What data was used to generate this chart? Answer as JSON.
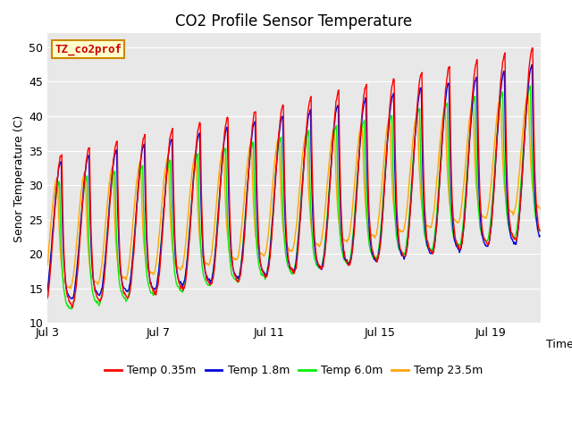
{
  "title": "CO2 Profile Sensor Temperature",
  "xlabel": "Time",
  "ylabel": "Senor Temperature (C)",
  "ylim": [
    10,
    52
  ],
  "yticks": [
    10,
    15,
    20,
    25,
    30,
    35,
    40,
    45,
    50
  ],
  "xtick_positions": [
    0,
    4,
    8,
    12,
    16
  ],
  "xtick_labels": [
    "Jul 3",
    "Jul 7",
    "Jul 11",
    "Jul 15",
    "Jul 19"
  ],
  "xlim": [
    0,
    17.8
  ],
  "colors": {
    "temp035": "#FF0000",
    "temp18": "#0000DD",
    "temp60": "#00EE00",
    "temp235": "#FFA500"
  },
  "legend_labels": [
    "Temp 0.35m",
    "Temp 1.8m",
    "Temp 6.0m",
    "Temp 23.5m"
  ],
  "annotation_text": "TZ_co2prof",
  "annotation_color": "#CC0000",
  "annotation_bg": "#FFFFCC",
  "annotation_border": "#CC8800",
  "plot_bg": "#E8E8E8",
  "grid_color": "#FFFFFF",
  "linewidth": 1.0,
  "title_fontsize": 12,
  "axis_fontsize": 9,
  "tick_fontsize": 9
}
